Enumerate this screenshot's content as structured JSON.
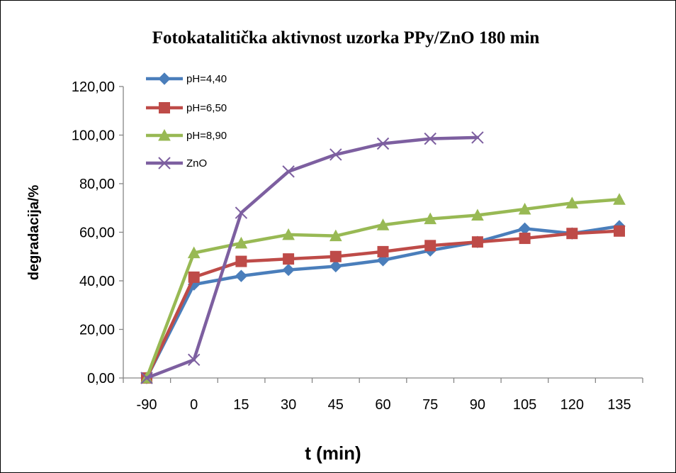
{
  "chart_data": {
    "type": "line",
    "title": "Fotokatalitička aktivnost uzorka PPy/ZnO 180 min",
    "xlabel": "t (min)",
    "ylabel": "degradacija/%",
    "categories": [
      "-90",
      "0",
      "15",
      "30",
      "45",
      "60",
      "75",
      "90",
      "105",
      "120",
      "135"
    ],
    "y_ticks": [
      "0,00",
      "20,00",
      "40,00",
      "60,00",
      "80,00",
      "100,00",
      "120,00"
    ],
    "ylim": [
      0,
      120
    ],
    "grid": false,
    "legend_position": "top-left",
    "series": [
      {
        "name": "pH=4,40",
        "color": "#4a7ebb",
        "marker": "diamond",
        "values": [
          0,
          38.5,
          42,
          44.5,
          46,
          48.5,
          52.5,
          56,
          61.5,
          59.5,
          62.5
        ]
      },
      {
        "name": "pH=6,50",
        "color": "#be4b48",
        "marker": "square",
        "values": [
          0,
          41.5,
          48,
          49,
          50,
          52,
          54.5,
          56,
          57.5,
          59.5,
          60.5
        ]
      },
      {
        "name": "pH=8,90",
        "color": "#98b954",
        "marker": "triangle",
        "values": [
          0,
          51.5,
          55.5,
          59,
          58.5,
          63,
          65.5,
          67,
          69.5,
          72,
          73.5
        ]
      },
      {
        "name": "ZnO",
        "color": "#7d5fa0",
        "marker": "x",
        "values": [
          0,
          7.5,
          68,
          85,
          92,
          96.5,
          98.5,
          99,
          null,
          null,
          null
        ]
      }
    ]
  }
}
